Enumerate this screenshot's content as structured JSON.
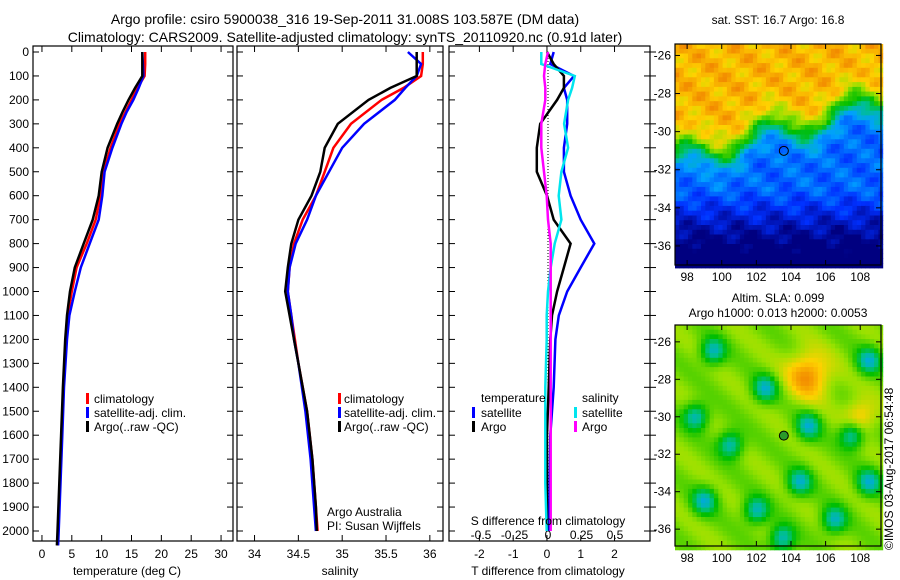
{
  "title": {
    "line1": "Argo profile: csiro 5900038_316 19-Sep-2011 31.008S 103.587E (DM data)",
    "line2": "Climatology: CARS2009. Satellite-adjusted climatology: synTS_20110920.nc (0.91d later)"
  },
  "colors": {
    "climatology": "#ff0000",
    "satellite": "#0000ff",
    "argo": "#000000",
    "s_satellite": "#00e5ee",
    "s_argo": "#ff00ff"
  },
  "legend": {
    "climatology": "climatology",
    "satellite_clim": "satellite-adj. clim.",
    "argo": "Argo(..raw -QC)",
    "temperature": "temperature",
    "salinity": "salinity",
    "satellite": "satellite",
    "argo_short": "Argo"
  },
  "annotation": {
    "line1": "Argo Australia",
    "line2": "PI: Susan Wijffels"
  },
  "credit": "©IMOS 03-Aug-2017 06:54:48",
  "chart_data": [
    {
      "type": "line",
      "xlabel": "temperature (deg C)",
      "ylabel": "",
      "xlim": [
        -1.5,
        32
      ],
      "ylim": [
        2060,
        0
      ],
      "xticks": [
        "0",
        "5",
        "10",
        "15",
        "20",
        "25",
        "30"
      ],
      "xtick_values": [
        0,
        5,
        10,
        15,
        20,
        25,
        30
      ],
      "yticks": [
        "0",
        "100",
        "200",
        "300",
        "400",
        "500",
        "600",
        "700",
        "800",
        "900",
        "1000",
        "1100",
        "1200",
        "1300",
        "1400",
        "1500",
        "1600",
        "1700",
        "1800",
        "1900",
        "2000"
      ],
      "depth": [
        0,
        50,
        100,
        150,
        200,
        250,
        300,
        400,
        500,
        600,
        700,
        800,
        900,
        1000,
        1100,
        1200,
        1400,
        1600,
        1800,
        2000,
        2060
      ],
      "series": [
        {
          "name": "climatology",
          "color": "#ff0000",
          "values": [
            17.3,
            17.3,
            17.2,
            16,
            15,
            14,
            13,
            11.5,
            10.3,
            9.8,
            9,
            7.5,
            5.8,
            5,
            4.3,
            4,
            3.6,
            3.3,
            3,
            2.7,
            2.6
          ]
        },
        {
          "name": "satellite-adj. clim.",
          "color": "#0000ff",
          "values": [
            16.8,
            16.9,
            17,
            16.2,
            15.3,
            14.2,
            13.3,
            11.8,
            10.5,
            10.1,
            9.5,
            8,
            6.5,
            5.5,
            4.6,
            4.2,
            3.7,
            3.4,
            3.1,
            2.8,
            2.7
          ]
        },
        {
          "name": "Argo(..raw -QC)",
          "color": "#000000",
          "values": [
            16.8,
            16.8,
            16.8,
            15.6,
            14.5,
            13.5,
            12.6,
            11,
            10,
            9.5,
            8.5,
            7,
            5.5,
            4.7,
            4.2,
            3.9,
            3.5,
            3.2,
            2.9,
            2.6,
            2.5
          ]
        }
      ]
    },
    {
      "type": "line",
      "xlabel": "salinity",
      "xlim": [
        33.8,
        36.15
      ],
      "ylim": [
        2060,
        0
      ],
      "xticks": [
        "34",
        "34.5",
        "35",
        "35.5",
        "36"
      ],
      "xtick_values": [
        34,
        34.5,
        35,
        35.5,
        36
      ],
      "depth": [
        0,
        50,
        100,
        150,
        200,
        300,
        400,
        500,
        600,
        700,
        800,
        900,
        1000,
        1100,
        1200,
        1300,
        1500,
        1700,
        1900,
        2000
      ],
      "series": [
        {
          "name": "climatology",
          "color": "#ff0000",
          "values": [
            35.92,
            35.92,
            35.9,
            35.7,
            35.45,
            35.1,
            34.9,
            34.8,
            34.7,
            34.55,
            34.45,
            34.4,
            34.38,
            34.42,
            34.46,
            34.5,
            34.6,
            34.66,
            34.7,
            34.72
          ]
        },
        {
          "name": "satellite-adj. clim.",
          "color": "#0000ff",
          "values": [
            35.75,
            35.9,
            35.85,
            35.72,
            35.6,
            35.25,
            35,
            34.85,
            34.7,
            34.6,
            34.47,
            34.4,
            34.38,
            34.42,
            34.45,
            34.5,
            34.58,
            34.64,
            34.68,
            34.7
          ]
        },
        {
          "name": "Argo(..raw -QC)",
          "color": "#000000",
          "values": [
            35.85,
            35.85,
            35.85,
            35.55,
            35.3,
            34.95,
            34.8,
            34.75,
            34.65,
            34.5,
            34.42,
            34.38,
            34.35,
            34.4,
            34.45,
            34.5,
            34.6,
            34.66,
            34.7,
            34.71
          ]
        }
      ]
    },
    {
      "type": "line",
      "xlabel": "T difference from climatology",
      "x2label": "S difference from climatology",
      "xlim": [
        -2.9,
        3.05
      ],
      "ylim": [
        2060,
        0
      ],
      "xticks": [
        "-2",
        "-1",
        "0",
        "1",
        "2"
      ],
      "xtick_values": [
        -2,
        -1,
        0,
        1,
        2
      ],
      "x2ticks": [
        "-0.5",
        "-0.25",
        "0",
        "0.25",
        "0.5"
      ],
      "x2tick_values": [
        -0.5,
        -0.25,
        0,
        0.25,
        0.5
      ],
      "depth": [
        0,
        50,
        100,
        150,
        200,
        300,
        400,
        500,
        600,
        700,
        800,
        900,
        1000,
        1100,
        1200,
        1400,
        1600,
        1800,
        2000
      ],
      "series": [
        {
          "name": "temperature satellite",
          "color": "#0000ff",
          "units": "T",
          "values": [
            0.2,
            0.1,
            0.8,
            0.5,
            0.6,
            0.6,
            0.5,
            0.5,
            0.7,
            1.0,
            1.4,
            1.0,
            0.6,
            0.35,
            0.25,
            0.2,
            0.1,
            0.08,
            0.05
          ]
        },
        {
          "name": "temperature Argo",
          "color": "#000000",
          "units": "T",
          "values": [
            0,
            0.2,
            0.5,
            0.5,
            0.3,
            -0.2,
            -0.3,
            -0.3,
            0,
            0.2,
            0.7,
            0.5,
            0.3,
            0.15,
            0.1,
            0.05,
            0,
            0,
            0
          ]
        },
        {
          "name": "salinity satellite",
          "color": "#00e5ee",
          "units": "S",
          "values": [
            -0.05,
            -0.05,
            0.2,
            0.18,
            0.15,
            0.12,
            0.15,
            0.1,
            0.08,
            0.1,
            0.05,
            0.02,
            0,
            -0.01,
            -0.01,
            -0.02,
            -0.02,
            -0.02,
            -0.01
          ]
        },
        {
          "name": "salinity Argo",
          "color": "#ff00ff",
          "units": "S",
          "values": [
            0,
            -0.02,
            -0.03,
            -0.02,
            -0.02,
            -0.05,
            -0.05,
            -0.03,
            -0.01,
            0,
            0.02,
            0.02,
            0.02,
            0.02,
            0.02,
            0.02,
            0.02,
            0.02,
            0.02
          ]
        }
      ]
    }
  ],
  "maps": [
    {
      "title": "sat. SST: 16.7 Argo: 16.8",
      "lat_ticks": [
        "-26",
        "-28",
        "-30",
        "-32",
        "-34",
        "-36"
      ],
      "lat_values": [
        -26,
        -28,
        -30,
        -32,
        -34,
        -36
      ],
      "lon_ticks": [
        "98",
        "100",
        "102",
        "104",
        "106",
        "108"
      ],
      "lon_values": [
        98,
        100,
        102,
        104,
        106,
        108
      ],
      "float_lat": -31.008,
      "float_lon": 103.587
    },
    {
      "title": "Altim. SLA: 0.099",
      "subtitle": "Argo h1000: 0.013 h2000: 0.0053",
      "lat_ticks": [
        "-26",
        "-28",
        "-30",
        "-32",
        "-34",
        "-36"
      ],
      "lat_values": [
        -26,
        -28,
        -30,
        -32,
        -34,
        -36
      ],
      "lon_ticks": [
        "98",
        "100",
        "102",
        "104",
        "106",
        "108"
      ],
      "lon_values": [
        98,
        100,
        102,
        104,
        106,
        108
      ],
      "float_lat": -31.008,
      "float_lon": 103.587
    }
  ]
}
